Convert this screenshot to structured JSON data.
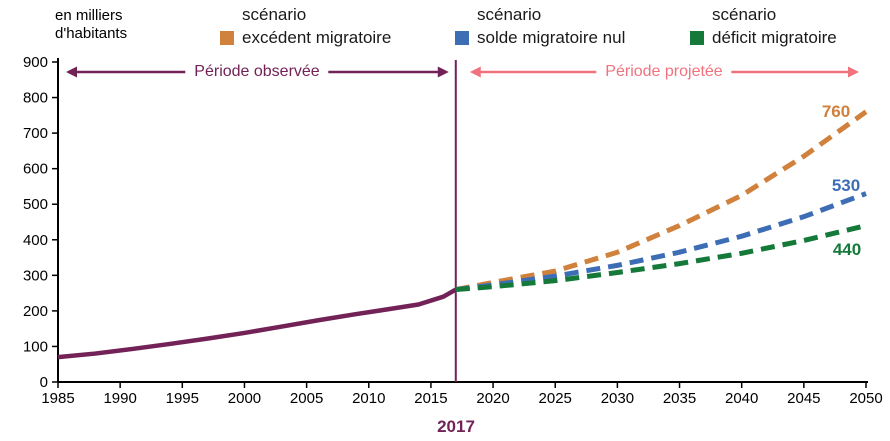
{
  "header": {
    "unit_line1": "en milliers",
    "unit_line2": "d'habitants"
  },
  "legend": [
    {
      "title": "scénario",
      "label": "excédent migratoire",
      "color": "#d0813c"
    },
    {
      "title": "scénario",
      "label": "solde migratoire nul",
      "color": "#3d6eb5"
    },
    {
      "title": "scénario",
      "label": "déficit migratoire",
      "color": "#15793a"
    }
  ],
  "colors": {
    "observed": "#722257",
    "projected_arrow": "#f1727f",
    "axis": "#000000"
  },
  "annotations": {
    "observed_period": "Période observée",
    "projected_period": "Période projetée",
    "divider_year": "2017",
    "end_labels": [
      {
        "text": "760"
      },
      {
        "text": "530"
      },
      {
        "text": "440"
      }
    ]
  },
  "chart_data": {
    "type": "line",
    "title": "",
    "ylabel": "en milliers d'habitants",
    "xlim": [
      1985,
      2050
    ],
    "ylim": [
      0,
      900
    ],
    "x_ticks": [
      1985,
      1990,
      1995,
      2000,
      2005,
      2010,
      2015,
      2020,
      2025,
      2030,
      2035,
      2040,
      2045,
      2050
    ],
    "y_ticks": [
      0,
      100,
      200,
      300,
      400,
      500,
      600,
      700,
      800,
      900
    ],
    "divider_x": 2017,
    "grid": false,
    "legend_position": "top",
    "series": [
      {
        "id": "observe",
        "name": "Période observée",
        "color": "#722257",
        "style": "solid",
        "points": [
          [
            1985,
            70
          ],
          [
            1988,
            80
          ],
          [
            1991,
            93
          ],
          [
            1994,
            107
          ],
          [
            1997,
            122
          ],
          [
            2000,
            138
          ],
          [
            2003,
            156
          ],
          [
            2006,
            174
          ],
          [
            2009,
            191
          ],
          [
            2012,
            207
          ],
          [
            2014,
            218
          ],
          [
            2016,
            240
          ],
          [
            2017,
            260
          ]
        ]
      },
      {
        "id": "excedent",
        "name": "scénario excédent migratoire",
        "color": "#d0813c",
        "style": "dashed",
        "points": [
          [
            2017,
            260
          ],
          [
            2020,
            280
          ],
          [
            2025,
            312
          ],
          [
            2030,
            365
          ],
          [
            2035,
            440
          ],
          [
            2040,
            525
          ],
          [
            2045,
            635
          ],
          [
            2050,
            760
          ]
        ]
      },
      {
        "id": "solde",
        "name": "scénario solde migratoire nul",
        "color": "#3d6eb5",
        "style": "dashed",
        "points": [
          [
            2017,
            260
          ],
          [
            2020,
            273
          ],
          [
            2025,
            298
          ],
          [
            2030,
            328
          ],
          [
            2035,
            365
          ],
          [
            2040,
            410
          ],
          [
            2045,
            465
          ],
          [
            2050,
            530
          ]
        ]
      },
      {
        "id": "deficit",
        "name": "scénario déficit migratoire",
        "color": "#15793a",
        "style": "dashed",
        "points": [
          [
            2017,
            260
          ],
          [
            2020,
            268
          ],
          [
            2025,
            285
          ],
          [
            2030,
            308
          ],
          [
            2035,
            333
          ],
          [
            2040,
            362
          ],
          [
            2045,
            398
          ],
          [
            2050,
            440
          ]
        ]
      }
    ]
  }
}
